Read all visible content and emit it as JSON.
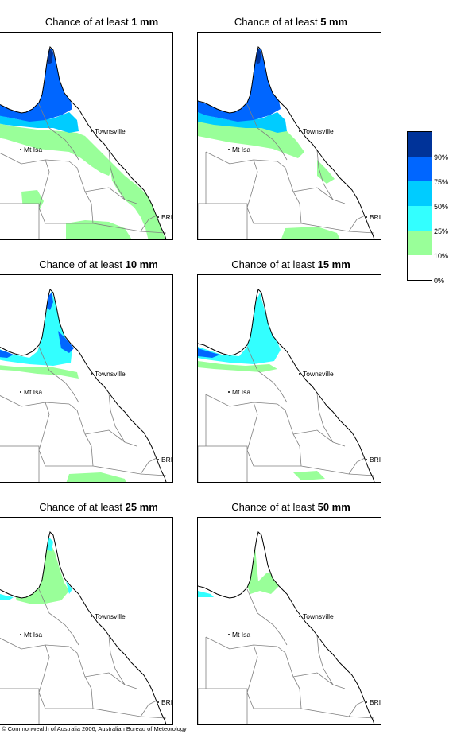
{
  "panels": [
    {
      "title_prefix": "Chance of at least ",
      "threshold": "1 mm",
      "level": 0
    },
    {
      "title_prefix": "Chance of at least ",
      "threshold": "5 mm",
      "level": 1
    },
    {
      "title_prefix": "Chance of at least ",
      "threshold": "10 mm",
      "level": 2
    },
    {
      "title_prefix": "Chance of at least ",
      "threshold": "15 mm",
      "level": 3
    },
    {
      "title_prefix": "Chance of at least ",
      "threshold": "25 mm",
      "level": 4
    },
    {
      "title_prefix": "Chance of at least ",
      "threshold": "50 mm",
      "level": 5
    }
  ],
  "places": {
    "townsville": "Townsville",
    "mt_isa": "Mt Isa",
    "brisbane": "BRIS"
  },
  "legend": {
    "labels": [
      "90%",
      "75%",
      "50%",
      "25%",
      "10%",
      "0%"
    ],
    "colors": [
      "#003399",
      "#0066ff",
      "#00ccff",
      "#33ffff",
      "#99ff99",
      "#ffffff"
    ]
  },
  "colors": {
    "c90": "#003399",
    "c75": "#0066ff",
    "c50": "#00ccff",
    "c25": "#33ffff",
    "c10": "#99ff99",
    "c0": "#ffffff",
    "border": "#808080"
  },
  "copyright": "© Commonwealth of Australia 2006, Australian Bureau of Meteorology"
}
